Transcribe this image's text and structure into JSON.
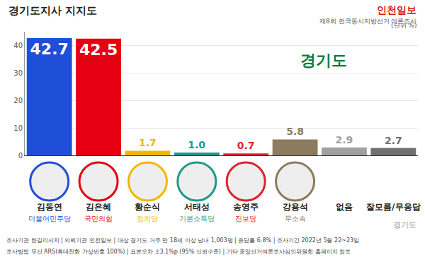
{
  "chart_data": {
    "type": "bar",
    "title": "경기도지사 지지도",
    "source": "인천일보",
    "subtitle": "제8회 전국동시지방선거 여론조사",
    "unit_label": "(단위 %)",
    "logo_text": "경기도",
    "categories": [
      "김동연",
      "김은혜",
      "황순식",
      "서태성",
      "송영주",
      "강용석",
      "없음",
      "잘모름/무응답"
    ],
    "sublabels": [
      "더불어민주당",
      "국민의힘",
      "정의당",
      "기본소득당",
      "진보당",
      "무소속",
      null,
      null
    ],
    "values": [
      42.7,
      42.5,
      1.7,
      1.0,
      0.7,
      5.8,
      2.9,
      2.7
    ],
    "value_labels": [
      "42.7",
      "42.5",
      "1.7",
      "1.0",
      "0.7",
      "5.8",
      "2.9",
      "2.7"
    ],
    "colors": [
      "#1f4fd8",
      "#e60012",
      "#f2b705",
      "#1e9a8a",
      "#d9262c",
      "#8c7b5e",
      "#a0a0a0",
      "#707070"
    ],
    "ylim": [
      0,
      45
    ],
    "yticks": [
      0,
      10,
      20,
      30,
      40
    ],
    "grid": true,
    "data_labels": true,
    "notes": [
      "조사기관 한길리서치 | 의뢰기관 인천일보 | 대상 경기도 거주 만 18세 이상 남녀 1,003명 | 응답률 6.8% | 조사기간 2022년 5월 22~23일",
      "조사방법 무선 ARS(휴대전화 가상번호 100%) | 표본오차 ±3.1%p (95% 신뢰수준) | 기타 중앙선거여론조사심의위원회 홈페이지 참조"
    ]
  }
}
